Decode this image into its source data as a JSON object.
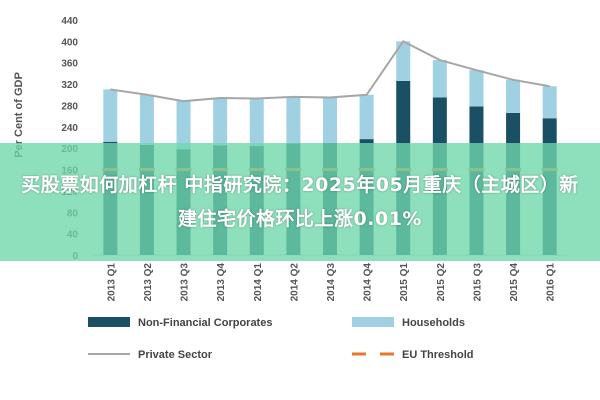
{
  "chart_data": {
    "type": "bar",
    "stacked": true,
    "ylabel": "Per Cent of GDP",
    "ylim": [
      0,
      440
    ],
    "yticks": [
      0,
      40,
      80,
      120,
      160,
      200,
      240,
      280,
      320,
      360,
      400,
      440
    ],
    "categories": [
      "2013 Q1",
      "2013 Q2",
      "2013 Q3",
      "2013 Q4",
      "2014 Q1",
      "2014 Q2",
      "2014 Q3",
      "2014 Q4",
      "2015 Q1",
      "2015 Q2",
      "2015 Q3",
      "2015 Q4",
      "2016 Q1"
    ],
    "series": [
      {
        "name": "Non-Financial Corporates",
        "type": "bar",
        "color": "#1b4f63",
        "values": [
          212,
          206,
          198,
          205,
          204,
          209,
          210,
          217,
          326,
          295,
          278,
          266,
          256
        ]
      },
      {
        "name": "Households",
        "type": "bar",
        "color": "#9fd1e2",
        "values": [
          98,
          94,
          90,
          89,
          89,
          87,
          85,
          83,
          74,
          70,
          68,
          62,
          60
        ]
      },
      {
        "name": "Private Sector",
        "type": "line",
        "color": "#a6a6a6",
        "values": [
          310,
          300,
          288,
          294,
          293,
          296,
          295,
          300,
          400,
          365,
          346,
          328,
          316
        ]
      },
      {
        "name": "EU Threshold",
        "type": "dashed-line",
        "color": "#e8762c",
        "values": [
          160,
          160,
          160,
          160,
          160,
          160,
          160,
          160,
          160,
          160,
          160,
          160,
          160
        ]
      }
    ],
    "legend_position": "bottom",
    "grid": false
  },
  "banner": {
    "text": "买股票如何加杠杆 中指研究院：2025年05月重庆（主城区）新建住宅价格环比上涨0.01%"
  }
}
